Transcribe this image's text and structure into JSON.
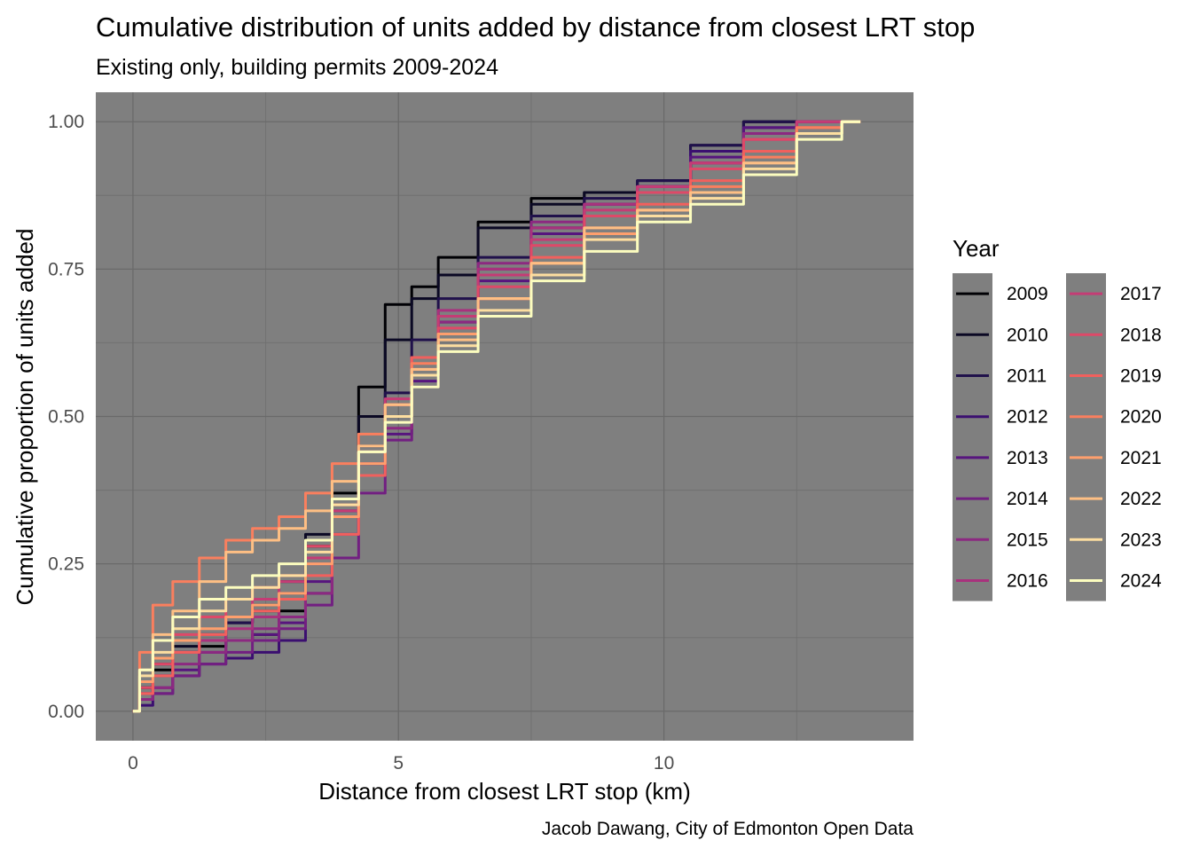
{
  "chart_data": {
    "type": "line",
    "title": "Cumulative distribution of units added by distance from closest LRT stop",
    "subtitle": "Existing only, building permits 2009-2024",
    "xlabel": "Distance from closest LRT stop (km)",
    "ylabel": "Cumulative proportion of units added",
    "caption": "Jacob Dawang, City of Edmonton Open Data",
    "xlim": [
      -0.7,
      14.7
    ],
    "ylim": [
      -0.05,
      1.05
    ],
    "x_ticks": [
      0,
      5,
      10
    ],
    "x_tick_labels": [
      "0",
      "5",
      "10"
    ],
    "y_ticks": [
      0,
      0.25,
      0.5,
      0.75,
      1
    ],
    "y_tick_labels": [
      "0.00",
      "0.25",
      "0.50",
      "0.75",
      "1.00"
    ],
    "grid": true,
    "panel_background": "#7f7f7f",
    "legend": {
      "title": "Year",
      "placement": "right"
    },
    "x": [
      0,
      0.25,
      0.5,
      1,
      1.5,
      2,
      2.5,
      3,
      3.5,
      4,
      4.5,
      5,
      5.5,
      6,
      7,
      8,
      9,
      10,
      11,
      12,
      13,
      13.7
    ],
    "series": [
      {
        "name": "2009",
        "color": "#000004",
        "values": [
          0,
          0.04,
          0.07,
          0.1,
          0.11,
          0.12,
          0.13,
          0.17,
          0.28,
          0.37,
          0.55,
          0.69,
          0.72,
          0.77,
          0.83,
          0.87,
          0.88,
          0.89,
          0.95,
          1,
          1,
          1
        ]
      },
      {
        "name": "2010",
        "color": "#0b0924",
        "values": [
          0,
          0.05,
          0.08,
          0.11,
          0.13,
          0.15,
          0.18,
          0.22,
          0.3,
          0.36,
          0.5,
          0.63,
          0.7,
          0.74,
          0.82,
          0.86,
          0.88,
          0.9,
          0.96,
          1,
          1,
          1
        ]
      },
      {
        "name": "2011",
        "color": "#20114b",
        "values": [
          0,
          0.03,
          0.06,
          0.1,
          0.12,
          0.15,
          0.17,
          0.2,
          0.26,
          0.33,
          0.45,
          0.54,
          0.63,
          0.7,
          0.77,
          0.84,
          0.87,
          0.9,
          0.96,
          1,
          1,
          1
        ]
      },
      {
        "name": "2012",
        "color": "#3b0f70",
        "values": [
          0,
          0.01,
          0.03,
          0.06,
          0.08,
          0.09,
          0.1,
          0.12,
          0.2,
          0.34,
          0.42,
          0.5,
          0.58,
          0.66,
          0.74,
          0.82,
          0.86,
          0.89,
          0.95,
          0.99,
          1,
          1
        ]
      },
      {
        "name": "2013",
        "color": "#57157e",
        "values": [
          0,
          0.02,
          0.04,
          0.07,
          0.1,
          0.12,
          0.13,
          0.15,
          0.22,
          0.3,
          0.4,
          0.47,
          0.56,
          0.64,
          0.73,
          0.81,
          0.86,
          0.89,
          0.94,
          0.99,
          1,
          1
        ]
      },
      {
        "name": "2014",
        "color": "#721f81",
        "values": [
          0,
          0.02,
          0.03,
          0.06,
          0.08,
          0.1,
          0.12,
          0.14,
          0.18,
          0.26,
          0.37,
          0.46,
          0.55,
          0.64,
          0.75,
          0.82,
          0.86,
          0.89,
          0.93,
          0.98,
          1,
          1
        ]
      },
      {
        "name": "2015",
        "color": "#8c2981",
        "values": [
          0,
          0.02,
          0.04,
          0.08,
          0.1,
          0.12,
          0.14,
          0.16,
          0.2,
          0.3,
          0.4,
          0.48,
          0.57,
          0.66,
          0.76,
          0.83,
          0.86,
          0.89,
          0.93,
          0.98,
          1,
          1
        ]
      },
      {
        "name": "2016",
        "color": "#a8327d",
        "values": [
          0,
          0.03,
          0.06,
          0.1,
          0.12,
          0.14,
          0.16,
          0.19,
          0.25,
          0.33,
          0.42,
          0.52,
          0.6,
          0.68,
          0.75,
          0.82,
          0.86,
          0.89,
          0.93,
          0.97,
          1,
          1
        ]
      },
      {
        "name": "2017",
        "color": "#c43c75",
        "values": [
          0,
          0.03,
          0.06,
          0.1,
          0.13,
          0.16,
          0.19,
          0.22,
          0.26,
          0.34,
          0.44,
          0.53,
          0.6,
          0.67,
          0.74,
          0.8,
          0.85,
          0.89,
          0.93,
          0.97,
          1,
          1
        ]
      },
      {
        "name": "2018",
        "color": "#de4968",
        "values": [
          0,
          0.04,
          0.08,
          0.13,
          0.16,
          0.19,
          0.21,
          0.23,
          0.28,
          0.35,
          0.44,
          0.52,
          0.6,
          0.65,
          0.72,
          0.79,
          0.84,
          0.88,
          0.92,
          0.97,
          0.99,
          1
        ]
      },
      {
        "name": "2019",
        "color": "#f1605d",
        "values": [
          0,
          0.03,
          0.06,
          0.1,
          0.13,
          0.16,
          0.17,
          0.19,
          0.23,
          0.3,
          0.4,
          0.5,
          0.6,
          0.64,
          0.7,
          0.77,
          0.82,
          0.86,
          0.9,
          0.95,
          0.99,
          1
        ]
      },
      {
        "name": "2020",
        "color": "#fa7f5e",
        "values": [
          0,
          0.1,
          0.18,
          0.22,
          0.26,
          0.29,
          0.31,
          0.33,
          0.37,
          0.42,
          0.47,
          0.52,
          0.59,
          0.64,
          0.7,
          0.76,
          0.81,
          0.85,
          0.89,
          0.94,
          0.99,
          1
        ]
      },
      {
        "name": "2021",
        "color": "#fe9f6d",
        "values": [
          0,
          0.05,
          0.09,
          0.12,
          0.14,
          0.16,
          0.18,
          0.2,
          0.25,
          0.33,
          0.42,
          0.5,
          0.58,
          0.64,
          0.7,
          0.76,
          0.81,
          0.85,
          0.88,
          0.93,
          0.98,
          1
        ]
      },
      {
        "name": "2022",
        "color": "#febf84",
        "values": [
          0,
          0.07,
          0.13,
          0.17,
          0.22,
          0.27,
          0.29,
          0.31,
          0.34,
          0.39,
          0.45,
          0.52,
          0.58,
          0.63,
          0.7,
          0.76,
          0.82,
          0.85,
          0.88,
          0.93,
          0.98,
          1
        ]
      },
      {
        "name": "2023",
        "color": "#fddea0",
        "values": [
          0,
          0.06,
          0.1,
          0.14,
          0.17,
          0.19,
          0.21,
          0.23,
          0.27,
          0.35,
          0.44,
          0.5,
          0.57,
          0.62,
          0.68,
          0.74,
          0.8,
          0.84,
          0.87,
          0.92,
          0.98,
          1
        ]
      },
      {
        "name": "2024",
        "color": "#fcfdbf",
        "values": [
          0,
          0.07,
          0.12,
          0.16,
          0.19,
          0.21,
          0.23,
          0.25,
          0.29,
          0.36,
          0.44,
          0.49,
          0.55,
          0.61,
          0.67,
          0.73,
          0.78,
          0.83,
          0.86,
          0.91,
          0.97,
          1
        ]
      }
    ]
  }
}
